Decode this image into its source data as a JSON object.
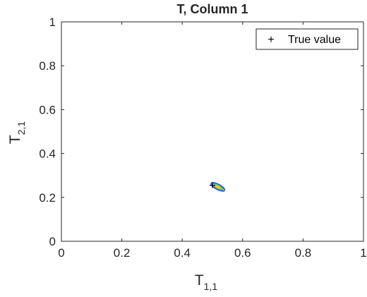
{
  "chart_data": {
    "type": "contour",
    "title": "T, Column 1",
    "xlabel": "T",
    "xlabel_sub": "1,1",
    "ylabel": "T",
    "ylabel_sub": "2,1",
    "xlim": [
      0,
      1
    ],
    "ylim": [
      0,
      1
    ],
    "xticks": [
      0,
      0.2,
      0.4,
      0.6,
      0.8,
      1
    ],
    "yticks": [
      0,
      0.2,
      0.4,
      0.6,
      0.8,
      1
    ],
    "xtick_labels": [
      "0",
      "0.2",
      "0.4",
      "0.6",
      "0.8",
      "1"
    ],
    "ytick_labels": [
      "0",
      "0.2",
      "0.4",
      "0.6",
      "0.8",
      "1"
    ],
    "grid": false,
    "legend": {
      "position": "top-right",
      "entries": [
        {
          "marker": "+",
          "label": "True value"
        }
      ]
    },
    "true_value": {
      "x": 0.5,
      "y": 0.255
    },
    "contour_center": {
      "x": 0.518,
      "y": 0.248
    },
    "contour_levels": [
      {
        "rx": 0.025,
        "ry": 0.012,
        "color": "#3b46c0"
      },
      {
        "rx": 0.019,
        "ry": 0.0085,
        "color": "#1fa2c8"
      },
      {
        "rx": 0.013,
        "ry": 0.0055,
        "color": "#8cc63e"
      },
      {
        "rx": 0.007,
        "ry": 0.003,
        "color": "#f2c418"
      }
    ],
    "contour_rotation_deg": 28
  }
}
